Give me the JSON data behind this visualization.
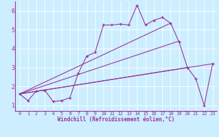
{
  "xlabel": "Windchill (Refroidissement éolien,°C)",
  "bg_color": "#cceeff",
  "line_color": "#993399",
  "xlim": [
    -0.5,
    23.5
  ],
  "ylim": [
    0.7,
    6.5
  ],
  "xticks": [
    0,
    1,
    2,
    3,
    4,
    5,
    6,
    7,
    8,
    9,
    10,
    11,
    12,
    13,
    14,
    15,
    16,
    17,
    18,
    19,
    20,
    21,
    22,
    23
  ],
  "yticks": [
    1,
    2,
    3,
    4,
    5,
    6
  ],
  "main_x": [
    0,
    1,
    2,
    3,
    4,
    5,
    6,
    7,
    8,
    9,
    10,
    11,
    12,
    13,
    14,
    15,
    16,
    17,
    18,
    19,
    20,
    21,
    22,
    23
  ],
  "main_y": [
    1.6,
    1.25,
    1.75,
    1.8,
    1.2,
    1.25,
    1.4,
    2.7,
    3.6,
    3.8,
    5.25,
    5.25,
    5.3,
    5.25,
    6.3,
    5.25,
    5.5,
    5.65,
    5.35,
    4.35,
    3.0,
    2.4,
    1.0,
    3.2
  ],
  "line1_x": [
    0,
    23
  ],
  "line1_y": [
    1.6,
    3.2
  ],
  "line2_x": [
    0,
    20
  ],
  "line2_y": [
    1.6,
    3.0
  ],
  "line3_x": [
    0,
    19
  ],
  "line3_y": [
    1.6,
    4.4
  ],
  "line4_x": [
    0,
    18
  ],
  "line4_y": [
    1.6,
    5.35
  ]
}
